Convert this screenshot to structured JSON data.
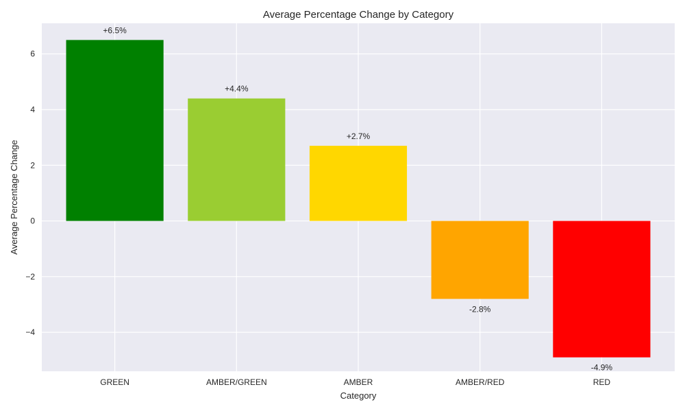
{
  "chart_data": {
    "type": "bar",
    "title": "Average Percentage Change by Category",
    "xlabel": "Category",
    "ylabel": "Average Percentage Change",
    "categories": [
      "GREEN",
      "AMBER/GREEN",
      "AMBER",
      "AMBER/RED",
      "RED"
    ],
    "values": [
      6.5,
      4.4,
      2.7,
      -2.8,
      -4.9
    ],
    "data_labels": [
      "+6.5%",
      "+4.4%",
      "+2.7%",
      "-2.8%",
      "-4.9%"
    ],
    "colors": [
      "#008000",
      "#9acd32",
      "#ffd700",
      "#ffa500",
      "#ff0000"
    ],
    "ylim": [
      -5.4,
      7.1
    ],
    "yticks": [
      -4,
      -2,
      0,
      2,
      4,
      6
    ],
    "ytick_labels": [
      "−4",
      "−2",
      "0",
      "2",
      "4",
      "6"
    ],
    "grid": true,
    "background": "#eaeaf2",
    "gridline_color": "#ffffff"
  }
}
